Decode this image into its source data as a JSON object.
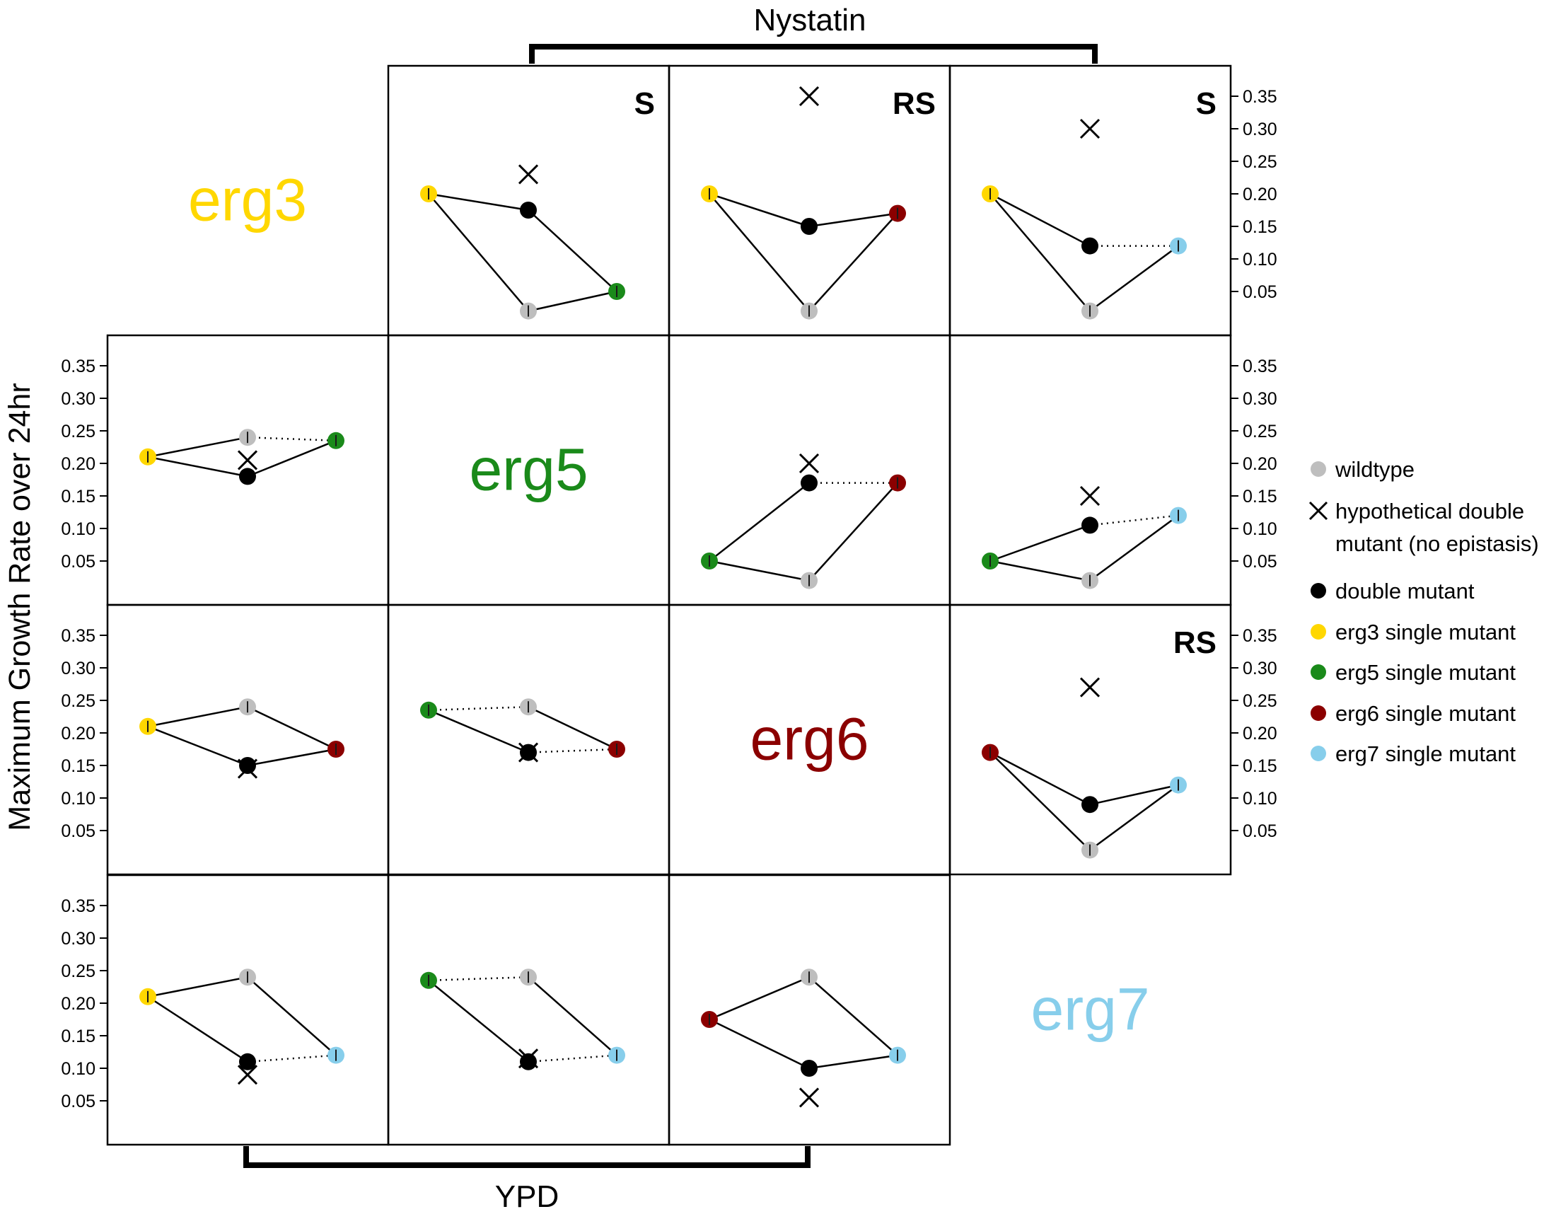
{
  "figure": {
    "top_label": "Nystatin",
    "bottom_label": "YPD",
    "y_label": "Maximum Growth Rate over 24hr"
  },
  "colors": {
    "wildtype": "#bebebe",
    "double": "#000000",
    "erg3": "#ffd700",
    "erg5": "#1a8a1a",
    "erg6": "#8b0000",
    "erg7": "#87ceeb"
  },
  "legend": [
    {
      "key": "wildtype",
      "marker": "dot",
      "color": "#bebebe",
      "label": "wildtype"
    },
    {
      "key": "hyp",
      "marker": "cross",
      "color": "#000000",
      "label": "hypothetical double",
      "label2": "mutant (no epistasis)"
    },
    {
      "key": "double",
      "marker": "dot",
      "color": "#000000",
      "label": "double mutant"
    },
    {
      "key": "erg3",
      "marker": "dot",
      "color": "#ffd700",
      "label": "erg3 single mutant"
    },
    {
      "key": "erg5",
      "marker": "dot",
      "color": "#1a8a1a",
      "label": "erg5 single mutant"
    },
    {
      "key": "erg6",
      "marker": "dot",
      "color": "#8b0000",
      "label": "erg6 single mutant"
    },
    {
      "key": "erg7",
      "marker": "dot",
      "color": "#87ceeb",
      "label": "erg7 single mutant"
    }
  ],
  "chart_data": {
    "type": "scatter",
    "title": "",
    "condition_upper_right": "Nystatin",
    "condition_lower_left": "YPD",
    "ylabel": "Maximum Growth Rate over 24hr",
    "ylim": [
      0.0,
      0.38
    ],
    "y_ticks": [
      "0.05",
      "0.10",
      "0.15",
      "0.20",
      "0.25",
      "0.30",
      "0.35"
    ],
    "genes": [
      "erg3",
      "erg5",
      "erg6",
      "erg7"
    ],
    "panels": [
      {
        "condition": "Nystatin",
        "row": 0,
        "col": 1,
        "gene_a": "erg3",
        "gene_b": "erg5",
        "wildtype": 0.02,
        "single_a": 0.2,
        "single_b": 0.05,
        "double": 0.175,
        "hypothetical": 0.23,
        "label": "S",
        "dotted_double_to_b": false,
        "dotted_wt_to_b": false
      },
      {
        "condition": "Nystatin",
        "row": 0,
        "col": 2,
        "gene_a": "erg3",
        "gene_b": "erg6",
        "wildtype": 0.02,
        "single_a": 0.2,
        "single_b": 0.17,
        "double": 0.15,
        "hypothetical": 0.35,
        "label": "RS",
        "dotted_double_to_b": false,
        "dotted_wt_to_b": false
      },
      {
        "condition": "Nystatin",
        "row": 0,
        "col": 3,
        "gene_a": "erg3",
        "gene_b": "erg7",
        "wildtype": 0.02,
        "single_a": 0.2,
        "single_b": 0.12,
        "double": 0.12,
        "hypothetical": 0.3,
        "label": "S",
        "dotted_double_to_b": true,
        "dotted_wt_to_b": false
      },
      {
        "condition": "Nystatin",
        "row": 1,
        "col": 2,
        "gene_a": "erg5",
        "gene_b": "erg6",
        "wildtype": 0.02,
        "single_a": 0.05,
        "single_b": 0.17,
        "double": 0.17,
        "hypothetical": 0.2,
        "label": "",
        "dotted_double_to_b": true,
        "dotted_wt_to_b": false
      },
      {
        "condition": "Nystatin",
        "row": 1,
        "col": 3,
        "gene_a": "erg5",
        "gene_b": "erg7",
        "wildtype": 0.02,
        "single_a": 0.05,
        "single_b": 0.12,
        "double": 0.105,
        "hypothetical": 0.15,
        "label": "",
        "dotted_double_to_b": true,
        "dotted_wt_to_b": false
      },
      {
        "condition": "Nystatin",
        "row": 2,
        "col": 3,
        "gene_a": "erg6",
        "gene_b": "erg7",
        "wildtype": 0.02,
        "single_a": 0.17,
        "single_b": 0.12,
        "double": 0.09,
        "hypothetical": 0.27,
        "label": "RS",
        "dotted_double_to_b": false,
        "dotted_wt_to_b": false
      },
      {
        "condition": "YPD",
        "row": 1,
        "col": 0,
        "gene_a": "erg3",
        "gene_b": "erg5",
        "wildtype": 0.24,
        "single_a": 0.21,
        "single_b": 0.235,
        "double": 0.18,
        "hypothetical": 0.205,
        "label": "",
        "dotted_double_to_b": false,
        "dotted_wt_to_b": true
      },
      {
        "condition": "YPD",
        "row": 2,
        "col": 0,
        "gene_a": "erg3",
        "gene_b": "erg6",
        "wildtype": 0.24,
        "single_a": 0.21,
        "single_b": 0.175,
        "double": 0.15,
        "hypothetical": 0.145,
        "label": "",
        "dotted_double_to_b": false,
        "dotted_wt_to_b": false
      },
      {
        "condition": "YPD",
        "row": 2,
        "col": 1,
        "gene_a": "erg5",
        "gene_b": "erg6",
        "wildtype": 0.24,
        "single_a": 0.235,
        "single_b": 0.175,
        "double": 0.17,
        "hypothetical": 0.17,
        "label": "",
        "dotted_double_to_b": true,
        "dotted_wt_to_a": true
      },
      {
        "condition": "YPD",
        "row": 3,
        "col": 0,
        "gene_a": "erg3",
        "gene_b": "erg7",
        "wildtype": 0.24,
        "single_a": 0.21,
        "single_b": 0.12,
        "double": 0.11,
        "hypothetical": 0.09,
        "label": "",
        "dotted_double_to_b": true,
        "dotted_wt_to_b": false
      },
      {
        "condition": "YPD",
        "row": 3,
        "col": 1,
        "gene_a": "erg5",
        "gene_b": "erg7",
        "wildtype": 0.24,
        "single_a": 0.235,
        "single_b": 0.12,
        "double": 0.11,
        "hypothetical": 0.115,
        "label": "",
        "dotted_double_to_b": true,
        "dotted_wt_to_a": true
      },
      {
        "condition": "YPD",
        "row": 3,
        "col": 2,
        "gene_a": "erg6",
        "gene_b": "erg7",
        "wildtype": 0.24,
        "single_a": 0.175,
        "single_b": 0.12,
        "double": 0.1,
        "hypothetical": 0.055,
        "label": "",
        "dotted_double_to_b": false,
        "dotted_wt_to_b": false
      }
    ]
  }
}
